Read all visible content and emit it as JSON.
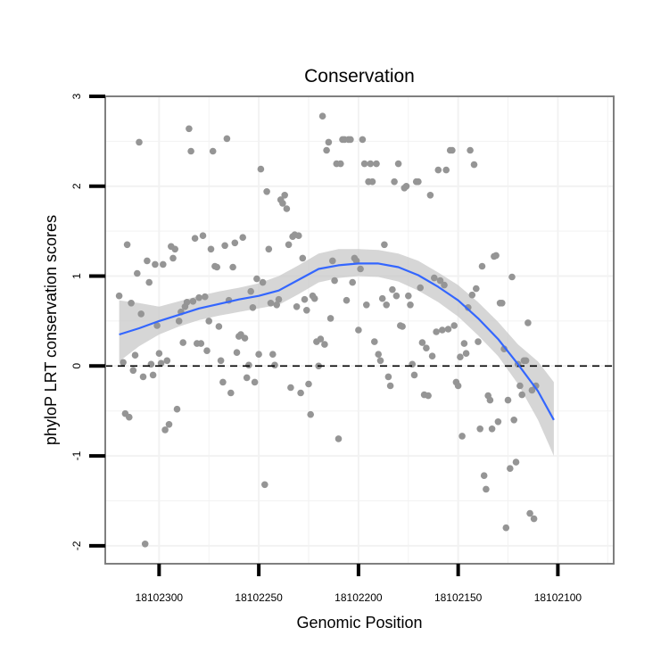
{
  "chart_data": {
    "type": "scatter",
    "title": "Conservation",
    "xlabel": "Genomic Position",
    "ylabel": "phyloP LRT conservation scores",
    "x_reversed": true,
    "xlim": [
      18102327,
      18102072
    ],
    "ylim": [
      -2.2,
      3.0
    ],
    "x_ticks": [
      18102300,
      18102250,
      18102200,
      18102150,
      18102100
    ],
    "x_tick_labels": [
      "18102300",
      "18102250",
      "18102200",
      "18102150",
      "18102100"
    ],
    "y_ticks": [
      -2,
      -1,
      0,
      1,
      2,
      3
    ],
    "y_tick_labels": [
      "-2",
      "-1",
      "0",
      "1",
      "2",
      "3"
    ],
    "reference_line": {
      "y": 0,
      "style": "dashed",
      "color": "#000000"
    },
    "grid": true,
    "colors": {
      "points": "#959595",
      "smooth_line": "#3366ff",
      "confidence_band": "#c8c8c8",
      "grid": "#f2f2f2",
      "panel_border": "#7f7f7f"
    },
    "points": [
      {
        "x": 18102320,
        "y": 0.78
      },
      {
        "x": 18102318,
        "y": 0.04
      },
      {
        "x": 18102317,
        "y": -0.53
      },
      {
        "x": 18102316,
        "y": 1.35
      },
      {
        "x": 18102315,
        "y": -0.57
      },
      {
        "x": 18102314,
        "y": 0.7
      },
      {
        "x": 18102313,
        "y": -0.05
      },
      {
        "x": 18102312,
        "y": 0.12
      },
      {
        "x": 18102311,
        "y": 1.03
      },
      {
        "x": 18102310,
        "y": 2.49
      },
      {
        "x": 18102309,
        "y": 0.58
      },
      {
        "x": 18102308,
        "y": -0.12
      },
      {
        "x": 18102307,
        "y": -1.98
      },
      {
        "x": 18102306,
        "y": 1.17
      },
      {
        "x": 18102305,
        "y": 0.93
      },
      {
        "x": 18102304,
        "y": 0.02
      },
      {
        "x": 18102303,
        "y": -0.1
      },
      {
        "x": 18102302,
        "y": 1.13
      },
      {
        "x": 18102301,
        "y": 0.45
      },
      {
        "x": 18102300,
        "y": 0.14
      },
      {
        "x": 18102299,
        "y": 0.03
      },
      {
        "x": 18102298,
        "y": 1.13
      },
      {
        "x": 18102297,
        "y": -0.71
      },
      {
        "x": 18102296,
        "y": 0.06
      },
      {
        "x": 18102295,
        "y": -0.65
      },
      {
        "x": 18102294,
        "y": 1.33
      },
      {
        "x": 18102293,
        "y": 1.2
      },
      {
        "x": 18102292,
        "y": 1.3
      },
      {
        "x": 18102291,
        "y": -0.48
      },
      {
        "x": 18102290,
        "y": 0.5
      },
      {
        "x": 18102289,
        "y": 0.6
      },
      {
        "x": 18102288,
        "y": 0.26
      },
      {
        "x": 18102287,
        "y": 0.66
      },
      {
        "x": 18102286,
        "y": 0.71
      },
      {
        "x": 18102285,
        "y": 2.64
      },
      {
        "x": 18102284,
        "y": 2.39
      },
      {
        "x": 18102283,
        "y": 0.72
      },
      {
        "x": 18102282,
        "y": 1.42
      },
      {
        "x": 18102281,
        "y": 0.25
      },
      {
        "x": 18102280,
        "y": 0.76
      },
      {
        "x": 18102279,
        "y": 0.25
      },
      {
        "x": 18102278,
        "y": 1.45
      },
      {
        "x": 18102277,
        "y": 0.77
      },
      {
        "x": 18102276,
        "y": 0.17
      },
      {
        "x": 18102275,
        "y": 0.5
      },
      {
        "x": 18102274,
        "y": 1.3
      },
      {
        "x": 18102273,
        "y": 2.39
      },
      {
        "x": 18102272,
        "y": 1.11
      },
      {
        "x": 18102271,
        "y": 1.1
      },
      {
        "x": 18102270,
        "y": 0.44
      },
      {
        "x": 18102269,
        "y": 0.06
      },
      {
        "x": 18102268,
        "y": -0.18
      },
      {
        "x": 18102267,
        "y": 1.34
      },
      {
        "x": 18102266,
        "y": 2.53
      },
      {
        "x": 18102265,
        "y": 0.73
      },
      {
        "x": 18102264,
        "y": -0.3
      },
      {
        "x": 18102263,
        "y": 1.1
      },
      {
        "x": 18102262,
        "y": 1.37
      },
      {
        "x": 18102261,
        "y": 0.15
      },
      {
        "x": 18102260,
        "y": 0.33
      },
      {
        "x": 18102259,
        "y": 0.35
      },
      {
        "x": 18102258,
        "y": 1.43
      },
      {
        "x": 18102257,
        "y": 0.31
      },
      {
        "x": 18102256,
        "y": -0.13
      },
      {
        "x": 18102255,
        "y": 0.01
      },
      {
        "x": 18102254,
        "y": 0.83
      },
      {
        "x": 18102253,
        "y": 0.65
      },
      {
        "x": 18102252,
        "y": -0.18
      },
      {
        "x": 18102251,
        "y": 0.97
      },
      {
        "x": 18102250,
        "y": 0.13
      },
      {
        "x": 18102249,
        "y": 2.19
      },
      {
        "x": 18102248,
        "y": 0.93
      },
      {
        "x": 18102247,
        "y": -1.32
      },
      {
        "x": 18102246,
        "y": 1.94
      },
      {
        "x": 18102245,
        "y": 1.3
      },
      {
        "x": 18102244,
        "y": 0.7
      },
      {
        "x": 18102243,
        "y": 0.13
      },
      {
        "x": 18102242,
        "y": 0.01
      },
      {
        "x": 18102241,
        "y": 0.68
      },
      {
        "x": 18102240,
        "y": 0.74
      },
      {
        "x": 18102239,
        "y": 1.85
      },
      {
        "x": 18102238,
        "y": 1.81
      },
      {
        "x": 18102237,
        "y": 1.9
      },
      {
        "x": 18102236,
        "y": 1.75
      },
      {
        "x": 18102235,
        "y": 1.35
      },
      {
        "x": 18102234,
        "y": -0.24
      },
      {
        "x": 18102233,
        "y": 1.44
      },
      {
        "x": 18102232,
        "y": 1.46
      },
      {
        "x": 18102231,
        "y": 0.66
      },
      {
        "x": 18102230,
        "y": 1.45
      },
      {
        "x": 18102229,
        "y": -0.3
      },
      {
        "x": 18102228,
        "y": 1.2
      },
      {
        "x": 18102227,
        "y": 0.74
      },
      {
        "x": 18102226,
        "y": 0.62
      },
      {
        "x": 18102225,
        "y": -0.2
      },
      {
        "x": 18102224,
        "y": -0.54
      },
      {
        "x": 18102223,
        "y": 0.78
      },
      {
        "x": 18102222,
        "y": 0.75
      },
      {
        "x": 18102221,
        "y": 0.27
      },
      {
        "x": 18102220,
        "y": 0.0
      },
      {
        "x": 18102219,
        "y": 0.3
      },
      {
        "x": 18102218,
        "y": 2.78
      },
      {
        "x": 18102217,
        "y": 0.24
      },
      {
        "x": 18102216,
        "y": 2.4
      },
      {
        "x": 18102215,
        "y": 2.49
      },
      {
        "x": 18102214,
        "y": 0.53
      },
      {
        "x": 18102213,
        "y": 1.17
      },
      {
        "x": 18102212,
        "y": 0.95
      },
      {
        "x": 18102211,
        "y": 2.25
      },
      {
        "x": 18102210,
        "y": -0.81
      },
      {
        "x": 18102209,
        "y": 2.25
      },
      {
        "x": 18102208,
        "y": 2.52
      },
      {
        "x": 18102207,
        "y": 2.52
      },
      {
        "x": 18102206,
        "y": 0.73
      },
      {
        "x": 18102205,
        "y": 2.52
      },
      {
        "x": 18102204,
        "y": 2.52
      },
      {
        "x": 18102203,
        "y": 0.93
      },
      {
        "x": 18102202,
        "y": 1.2
      },
      {
        "x": 18102201,
        "y": 1.17
      },
      {
        "x": 18102200,
        "y": 0.4
      },
      {
        "x": 18102199,
        "y": 1.08
      },
      {
        "x": 18102198,
        "y": 2.52
      },
      {
        "x": 18102197,
        "y": 2.25
      },
      {
        "x": 18102196,
        "y": 0.68
      },
      {
        "x": 18102195,
        "y": 2.05
      },
      {
        "x": 18102194,
        "y": 2.25
      },
      {
        "x": 18102193,
        "y": 2.05
      },
      {
        "x": 18102192,
        "y": 0.27
      },
      {
        "x": 18102191,
        "y": 2.25
      },
      {
        "x": 18102190,
        "y": 0.13
      },
      {
        "x": 18102189,
        "y": 0.06
      },
      {
        "x": 18102188,
        "y": 0.75
      },
      {
        "x": 18102187,
        "y": 1.35
      },
      {
        "x": 18102186,
        "y": 0.68
      },
      {
        "x": 18102185,
        "y": -0.12
      },
      {
        "x": 18102184,
        "y": -0.22
      },
      {
        "x": 18102183,
        "y": 0.85
      },
      {
        "x": 18102182,
        "y": 2.05
      },
      {
        "x": 18102181,
        "y": 0.78
      },
      {
        "x": 18102180,
        "y": 2.25
      },
      {
        "x": 18102179,
        "y": 0.45
      },
      {
        "x": 18102178,
        "y": 0.44
      },
      {
        "x": 18102177,
        "y": 1.98
      },
      {
        "x": 18102176,
        "y": 2.0
      },
      {
        "x": 18102175,
        "y": 0.78
      },
      {
        "x": 18102174,
        "y": 0.68
      },
      {
        "x": 18102173,
        "y": 0.02
      },
      {
        "x": 18102172,
        "y": -0.1
      },
      {
        "x": 18102171,
        "y": 2.05
      },
      {
        "x": 18102170,
        "y": 2.05
      },
      {
        "x": 18102169,
        "y": 0.87
      },
      {
        "x": 18102168,
        "y": 0.26
      },
      {
        "x": 18102167,
        "y": -0.32
      },
      {
        "x": 18102166,
        "y": 0.2
      },
      {
        "x": 18102165,
        "y": -0.33
      },
      {
        "x": 18102164,
        "y": 1.9
      },
      {
        "x": 18102163,
        "y": 0.11
      },
      {
        "x": 18102162,
        "y": 0.98
      },
      {
        "x": 18102161,
        "y": 0.38
      },
      {
        "x": 18102160,
        "y": 2.18
      },
      {
        "x": 18102159,
        "y": 0.95
      },
      {
        "x": 18102158,
        "y": 0.4
      },
      {
        "x": 18102157,
        "y": 0.9
      },
      {
        "x": 18102156,
        "y": 2.18
      },
      {
        "x": 18102155,
        "y": 0.41
      },
      {
        "x": 18102154,
        "y": 2.4
      },
      {
        "x": 18102153,
        "y": 2.4
      },
      {
        "x": 18102152,
        "y": 0.45
      },
      {
        "x": 18102151,
        "y": -0.18
      },
      {
        "x": 18102150,
        "y": -0.22
      },
      {
        "x": 18102149,
        "y": 0.1
      },
      {
        "x": 18102148,
        "y": -0.78
      },
      {
        "x": 18102147,
        "y": 0.25
      },
      {
        "x": 18102146,
        "y": 0.14
      },
      {
        "x": 18102145,
        "y": 0.65
      },
      {
        "x": 18102144,
        "y": 2.4
      },
      {
        "x": 18102143,
        "y": 0.79
      },
      {
        "x": 18102142,
        "y": 2.24
      },
      {
        "x": 18102141,
        "y": 0.86
      },
      {
        "x": 18102140,
        "y": 0.27
      },
      {
        "x": 18102139,
        "y": -0.7
      },
      {
        "x": 18102138,
        "y": 1.11
      },
      {
        "x": 18102137,
        "y": -1.22
      },
      {
        "x": 18102136,
        "y": -1.37
      },
      {
        "x": 18102135,
        "y": -0.33
      },
      {
        "x": 18102134,
        "y": -0.38
      },
      {
        "x": 18102133,
        "y": -0.7
      },
      {
        "x": 18102132,
        "y": 1.22
      },
      {
        "x": 18102131,
        "y": 1.23
      },
      {
        "x": 18102130,
        "y": -0.62
      },
      {
        "x": 18102129,
        "y": 0.7
      },
      {
        "x": 18102128,
        "y": 0.7
      },
      {
        "x": 18102127,
        "y": 0.19
      },
      {
        "x": 18102126,
        "y": -1.8
      },
      {
        "x": 18102125,
        "y": -0.38
      },
      {
        "x": 18102124,
        "y": -1.14
      },
      {
        "x": 18102123,
        "y": 0.99
      },
      {
        "x": 18102122,
        "y": -0.6
      },
      {
        "x": 18102121,
        "y": -1.07
      },
      {
        "x": 18102120,
        "y": 0.02
      },
      {
        "x": 18102119,
        "y": -0.22
      },
      {
        "x": 18102118,
        "y": -0.32
      },
      {
        "x": 18102117,
        "y": 0.06
      },
      {
        "x": 18102116,
        "y": 0.06
      },
      {
        "x": 18102115,
        "y": 0.48
      },
      {
        "x": 18102114,
        "y": -1.64
      },
      {
        "x": 18102113,
        "y": -0.27
      },
      {
        "x": 18102112,
        "y": -1.7
      },
      {
        "x": 18102111,
        "y": -0.22
      }
    ],
    "smooth": [
      {
        "x": 18102320,
        "y": 0.35,
        "lo": 0.05,
        "hi": 0.73
      },
      {
        "x": 18102310,
        "y": 0.42,
        "lo": 0.22,
        "hi": 0.7
      },
      {
        "x": 18102300,
        "y": 0.5,
        "lo": 0.35,
        "hi": 0.66
      },
      {
        "x": 18102290,
        "y": 0.57,
        "lo": 0.44,
        "hi": 0.72
      },
      {
        "x": 18102280,
        "y": 0.64,
        "lo": 0.51,
        "hi": 0.78
      },
      {
        "x": 18102270,
        "y": 0.69,
        "lo": 0.56,
        "hi": 0.83
      },
      {
        "x": 18102260,
        "y": 0.74,
        "lo": 0.6,
        "hi": 0.87
      },
      {
        "x": 18102250,
        "y": 0.78,
        "lo": 0.64,
        "hi": 0.92
      },
      {
        "x": 18102240,
        "y": 0.84,
        "lo": 0.68,
        "hi": 1.0
      },
      {
        "x": 18102230,
        "y": 0.96,
        "lo": 0.8,
        "hi": 1.12
      },
      {
        "x": 18102220,
        "y": 1.08,
        "lo": 0.93,
        "hi": 1.25
      },
      {
        "x": 18102210,
        "y": 1.12,
        "lo": 0.98,
        "hi": 1.3
      },
      {
        "x": 18102200,
        "y": 1.14,
        "lo": 1.0,
        "hi": 1.3
      },
      {
        "x": 18102190,
        "y": 1.14,
        "lo": 0.99,
        "hi": 1.29
      },
      {
        "x": 18102180,
        "y": 1.1,
        "lo": 0.94,
        "hi": 1.25
      },
      {
        "x": 18102170,
        "y": 1.01,
        "lo": 0.84,
        "hi": 1.17
      },
      {
        "x": 18102160,
        "y": 0.88,
        "lo": 0.71,
        "hi": 1.04
      },
      {
        "x": 18102150,
        "y": 0.73,
        "lo": 0.55,
        "hi": 0.9
      },
      {
        "x": 18102140,
        "y": 0.53,
        "lo": 0.34,
        "hi": 0.71
      },
      {
        "x": 18102130,
        "y": 0.3,
        "lo": 0.11,
        "hi": 0.49
      },
      {
        "x": 18102120,
        "y": 0.02,
        "lo": -0.2,
        "hi": 0.24
      },
      {
        "x": 18102110,
        "y": -0.28,
        "lo": -0.6,
        "hi": 0.05
      },
      {
        "x": 18102102,
        "y": -0.6,
        "lo": -1.0,
        "hi": -0.18
      }
    ]
  }
}
